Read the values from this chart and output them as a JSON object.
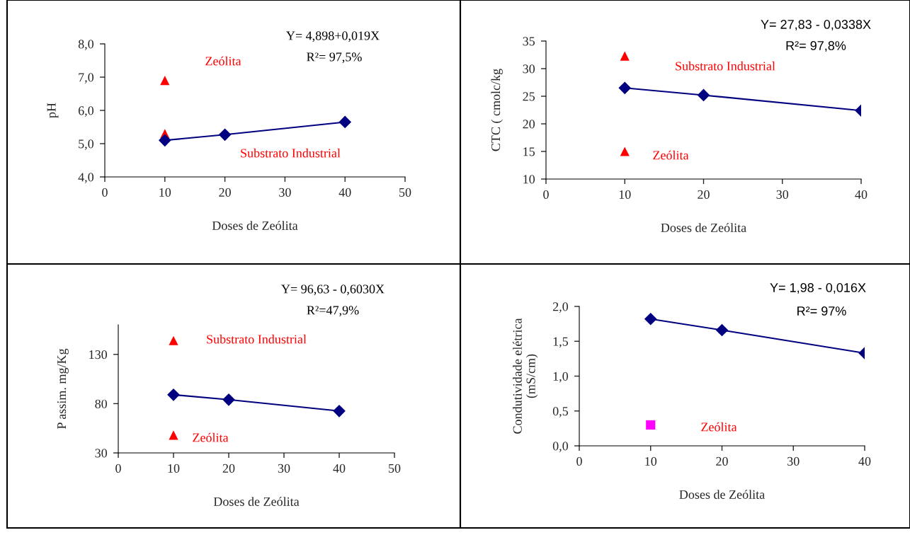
{
  "chart_data": [
    {
      "type": "line",
      "xlabel": "Doses de Zeólita",
      "ylabel": "pH",
      "xlim": [
        0,
        50
      ],
      "xticks": [
        0,
        10,
        20,
        30,
        40,
        50
      ],
      "ylim": [
        4,
        8
      ],
      "yticks": [
        {
          "value": 4,
          "label": "4,0"
        },
        {
          "value": 5,
          "label": "5,0"
        },
        {
          "value": 6,
          "label": "6,0"
        },
        {
          "value": 7,
          "label": "7,0"
        },
        {
          "value": 8,
          "label": "8,0"
        }
      ],
      "grid": false,
      "legend": false,
      "series": [
        {
          "x": [
            10,
            20,
            40
          ],
          "values": [
            5.1,
            5.27,
            5.65
          ],
          "color": "#000080",
          "marker": "diamond",
          "line_style": "solid"
        },
        {
          "type": "scatter",
          "x": [
            10,
            10
          ],
          "values": [
            6.9,
            5.3
          ],
          "color": "#ff0000",
          "marker": "triangle"
        }
      ],
      "annotations": [
        "Y= 4,898+0,019X",
        "R²= 97,5%",
        "Zeólita",
        "Substrato Industrial"
      ]
    },
    {
      "type": "line",
      "xlabel": "Doses de Zeólita",
      "ylabel": "CTC ( cmolc/kg",
      "xlim": [
        0,
        40
      ],
      "xticks": [
        0,
        10,
        20,
        30,
        40
      ],
      "ylim": [
        10,
        35
      ],
      "yticks": [
        10,
        15,
        20,
        25,
        30,
        35
      ],
      "grid": false,
      "legend": false,
      "series": [
        {
          "x": [
            10,
            20,
            40
          ],
          "values": [
            26.5,
            25.2,
            22.4
          ],
          "color": "#000080",
          "marker": "diamond",
          "line_style": "solid"
        },
        {
          "type": "scatter",
          "x": [
            10,
            10
          ],
          "values": [
            32.3,
            15
          ],
          "color": "#ff0000",
          "marker": "triangle"
        }
      ],
      "annotations": [
        "Y= 27,83 - 0,0338X",
        "R²= 97,8%",
        "Substrato Industrial",
        "Zeólita"
      ]
    },
    {
      "type": "line",
      "xlabel": "Doses de Zeólita",
      "ylabel": "P assim. mg/Kg",
      "xlim": [
        0,
        50
      ],
      "xticks": [
        0,
        10,
        20,
        30,
        40,
        50
      ],
      "ylim": [
        30,
        160
      ],
      "yticks": [
        30,
        80,
        130
      ],
      "grid": false,
      "legend": false,
      "series": [
        {
          "x": [
            10,
            20,
            40
          ],
          "values": [
            89,
            84,
            72.5
          ],
          "color": "#000080",
          "marker": "diamond",
          "line_style": "solid"
        },
        {
          "type": "scatter",
          "x": [
            10,
            10
          ],
          "values": [
            144,
            48
          ],
          "color": "#ff0000",
          "marker": "triangle"
        }
      ],
      "annotations": [
        "Y= 96,63 - 0,6030X",
        "R²=47,9%",
        "Substrato Industrial",
        "Zeólita"
      ]
    },
    {
      "type": "line",
      "xlabel": "Doses de Zeólita",
      "ylabel": "Condutividade elétrica\n(mS/cm)",
      "xlim": [
        0,
        40
      ],
      "xticks": [
        0,
        10,
        20,
        30,
        40
      ],
      "ylim": [
        0,
        2
      ],
      "yticks": [
        {
          "value": 0,
          "label": "0,0"
        },
        {
          "value": 0.5,
          "label": "0,5"
        },
        {
          "value": 1,
          "label": "1,0"
        },
        {
          "value": 1.5,
          "label": "1,5"
        },
        {
          "value": 2,
          "label": "2,0"
        }
      ],
      "grid": false,
      "legend": false,
      "series": [
        {
          "x": [
            10,
            20,
            40
          ],
          "values": [
            1.82,
            1.66,
            1.33
          ],
          "color": "#000080",
          "marker": "diamond",
          "line_style": "solid"
        },
        {
          "type": "scatter",
          "x": [
            10
          ],
          "values": [
            0.3
          ],
          "color": "#ff00ff",
          "marker": "square"
        }
      ],
      "annotations": [
        "Y= 1,98 - 0,016X",
        "R²= 97%",
        "Zeólita"
      ]
    }
  ]
}
